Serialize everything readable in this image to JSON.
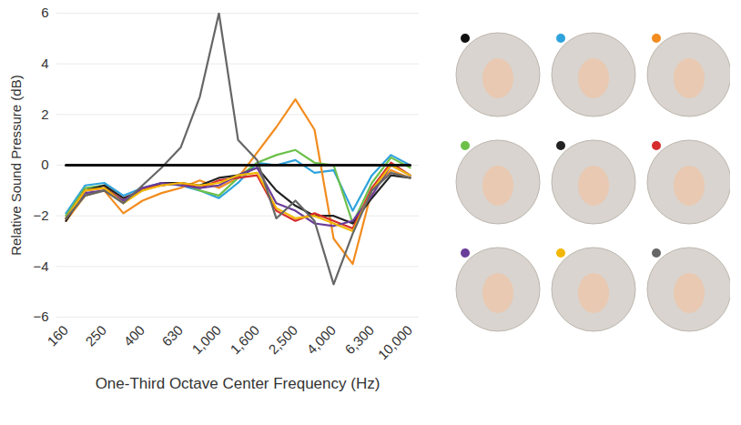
{
  "chart_data": {
    "type": "line",
    "x_label": "One-Third Octave Center Frequency (Hz)",
    "y_label": "Relative Sound Pressure (dB)",
    "categories": [
      "160",
      null,
      "250",
      null,
      "400",
      null,
      "630",
      null,
      "1,000",
      null,
      "1,600",
      null,
      "2,500",
      null,
      "4,000",
      null,
      "6,300",
      null,
      "10,000"
    ],
    "ylim": [
      -6,
      6
    ],
    "yticks": [
      -6,
      -4,
      -2,
      0,
      2,
      4,
      6
    ],
    "grid": true,
    "series": [
      {
        "color": "#111111",
        "values": [
          0,
          0,
          0,
          0,
          0,
          0,
          0,
          0,
          0,
          0,
          0,
          0,
          0,
          0,
          0,
          0,
          0,
          0,
          0
        ]
      },
      {
        "color": "#2fa3dc",
        "values": [
          -1.9,
          -0.8,
          -0.7,
          -1.2,
          -0.9,
          -0.7,
          -0.8,
          -1.0,
          -1.3,
          -0.7,
          0.1,
          0.0,
          0.2,
          -0.3,
          -0.2,
          -1.8,
          -0.4,
          0.4,
          0.0
        ]
      },
      {
        "color": "#f28c1e",
        "values": [
          -2.2,
          -1.2,
          -1.0,
          -1.9,
          -1.4,
          -1.1,
          -0.9,
          -0.6,
          -0.9,
          -0.5,
          0.5,
          1.5,
          2.6,
          1.4,
          -2.9,
          -3.9,
          -1.0,
          -0.2,
          -0.5
        ]
      },
      {
        "color": "#6cc04a",
        "values": [
          -2.0,
          -0.9,
          -0.8,
          -1.5,
          -0.9,
          -0.8,
          -0.7,
          -1.0,
          -1.2,
          -0.5,
          0.1,
          0.4,
          0.6,
          0.1,
          0.0,
          -2.3,
          -0.7,
          0.3,
          -0.1
        ]
      },
      {
        "color": "#222222",
        "values": [
          -2.2,
          -1.0,
          -0.8,
          -1.3,
          -1.0,
          -0.7,
          -0.7,
          -0.8,
          -0.5,
          -0.4,
          -0.1,
          -1.0,
          -1.6,
          -2.0,
          -2.0,
          -2.3,
          -1.3,
          -0.4,
          -0.5
        ]
      },
      {
        "color": "#d62c2c",
        "values": [
          -2.1,
          -1.0,
          -0.9,
          -1.4,
          -0.9,
          -0.8,
          -0.7,
          -0.9,
          -0.6,
          -0.5,
          -0.4,
          -1.8,
          -2.2,
          -1.9,
          -2.2,
          -2.5,
          -0.9,
          0.1,
          -0.4
        ]
      },
      {
        "color": "#6a3d9a",
        "values": [
          -2.1,
          -1.1,
          -1.0,
          -1.4,
          -0.9,
          -0.7,
          -0.8,
          -0.9,
          -0.8,
          -0.4,
          -0.1,
          -1.5,
          -1.8,
          -2.3,
          -2.4,
          -2.2,
          -1.2,
          0.0,
          -0.4
        ]
      },
      {
        "color": "#f2b705",
        "values": [
          -2.1,
          -1.0,
          -0.9,
          -1.5,
          -1.0,
          -0.8,
          -0.7,
          -0.8,
          -0.7,
          -0.4,
          -0.3,
          -1.7,
          -2.1,
          -2.0,
          -2.3,
          -2.6,
          -1.0,
          0.0,
          -0.4
        ]
      },
      {
        "color": "#666666",
        "values": [
          -2.1,
          -1.2,
          -1.0,
          -1.5,
          -0.8,
          -0.1,
          0.7,
          2.7,
          6.0,
          1.0,
          0.2,
          -2.1,
          -1.4,
          -2.2,
          -4.7,
          -2.7,
          -1.0,
          -0.3,
          -0.5
        ]
      }
    ]
  }
}
